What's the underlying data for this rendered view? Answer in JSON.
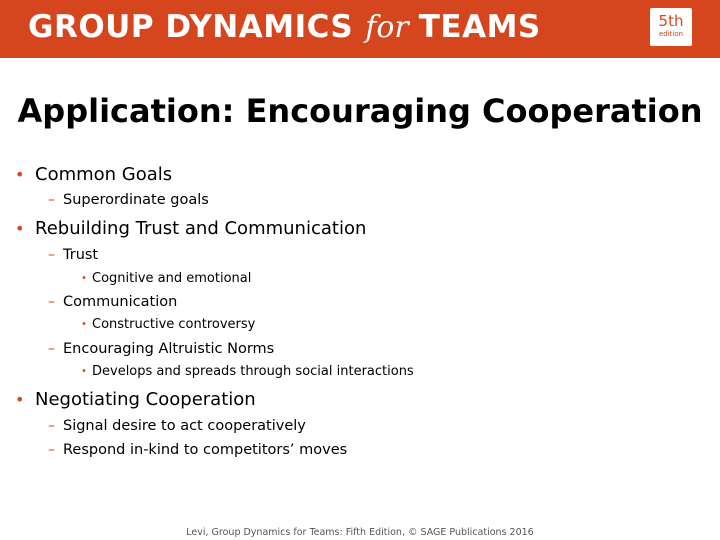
{
  "banner": {
    "title_part1": "GROUP DYNAMICS",
    "title_for": "for",
    "title_part2": "TEAMS",
    "edition_number": "5th",
    "edition_word": "edition",
    "color": "#d5461e"
  },
  "slide": {
    "title": "Application: Encouraging Cooperation",
    "bullets": [
      {
        "level": 1,
        "text": "Common Goals"
      },
      {
        "level": 2,
        "text": "Superordinate goals"
      },
      {
        "level": 1,
        "text": "Rebuilding Trust and Communication"
      },
      {
        "level": 2,
        "text": "Trust"
      },
      {
        "level": 3,
        "text": "Cognitive and emotional"
      },
      {
        "level": 2,
        "text": "Communication"
      },
      {
        "level": 3,
        "text": "Constructive controversy"
      },
      {
        "level": 2,
        "text": "Encouraging Altruistic Norms"
      },
      {
        "level": 3,
        "text": "Develops and spreads through social interactions"
      },
      {
        "level": 1,
        "text": "Negotiating Cooperation"
      },
      {
        "level": 2,
        "text": "Signal desire to act cooperatively"
      },
      {
        "level": 2,
        "text": "Respond in-kind to competitors’ moves"
      }
    ]
  },
  "footer": {
    "text": "Levi, Group Dynamics for Teams: Fifth Edition, © SAGE Publications 2016"
  }
}
